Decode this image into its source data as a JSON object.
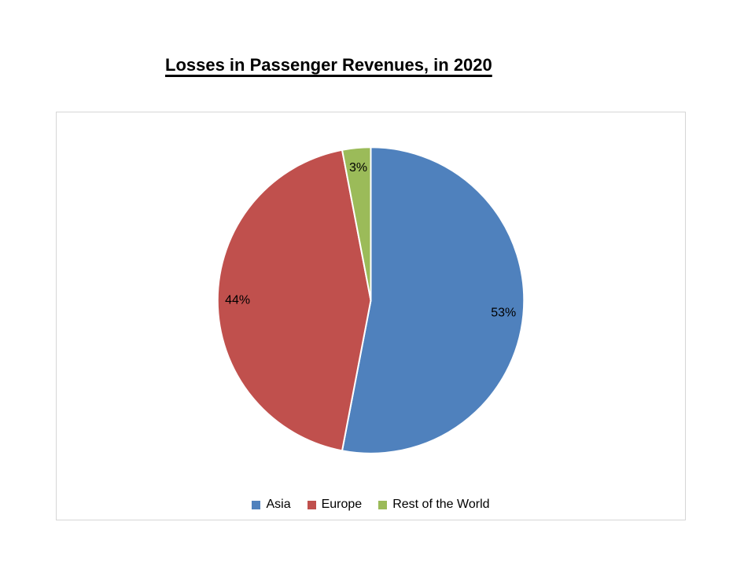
{
  "chart_data": {
    "type": "pie",
    "title": "Losses in Passenger Revenues, in 2020",
    "categories": [
      "Asia",
      "Europe",
      "Rest of the World"
    ],
    "values": [
      53,
      44,
      3
    ],
    "data_labels": [
      "53%",
      "44%",
      "3%"
    ],
    "colors": [
      "#4F81BD",
      "#C0504D",
      "#9BBB59"
    ],
    "slice_border_color": "#FFFFFF",
    "label_color": "#000000",
    "start_angle_deg": 0,
    "direction": "clockwise",
    "legend_position": "bottom",
    "frame_border_color": "#D6D6D6",
    "background_color": "#FFFFFF"
  }
}
